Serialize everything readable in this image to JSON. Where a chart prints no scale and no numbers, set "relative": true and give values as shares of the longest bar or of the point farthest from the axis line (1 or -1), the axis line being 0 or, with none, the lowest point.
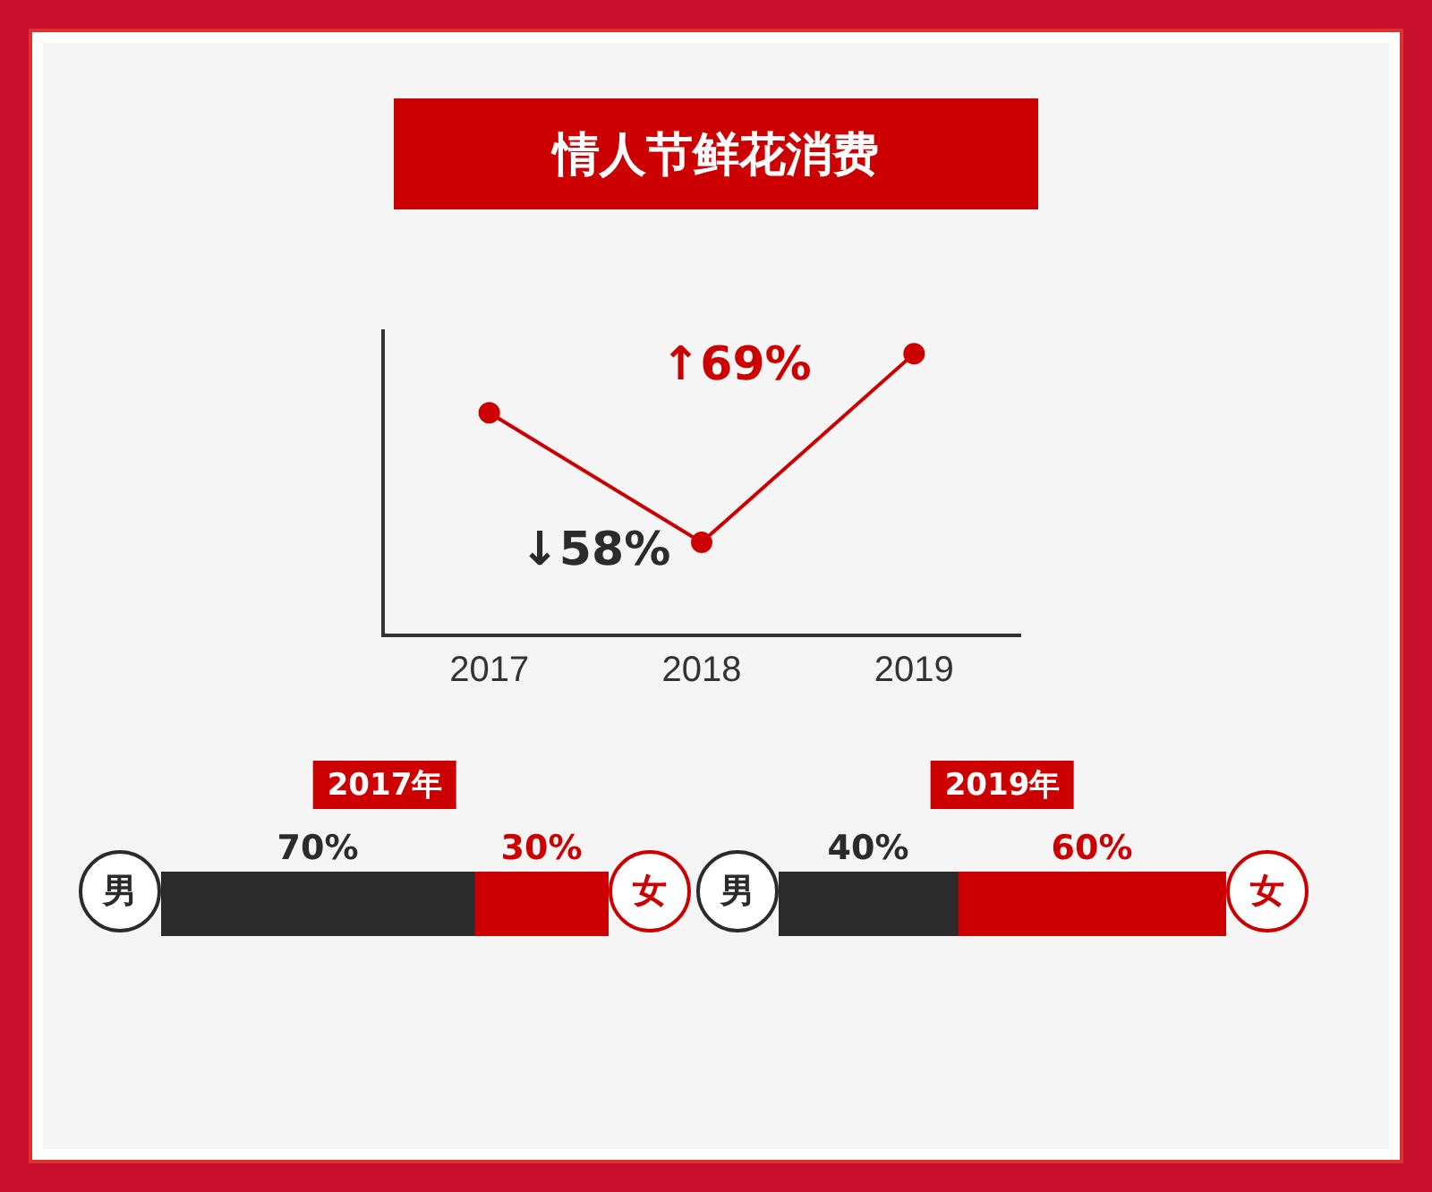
{
  "chart_data": [
    {
      "type": "line",
      "title": "情人节鲜花消费",
      "categories": [
        "2017",
        "2018",
        "2019"
      ],
      "relative": true,
      "series": [
        {
          "color": "#cc0000",
          "values": [
            0.79,
            0.33,
            1
          ]
        }
      ],
      "annotations": [
        "↓58%",
        "↑69%"
      ],
      "marker": "circle",
      "tick_labels": "x"
    },
    {
      "type": "bar",
      "title": "2017年",
      "orientation": "horizontal",
      "stacked": true,
      "categories": [
        null
      ],
      "tick_labels": false,
      "series": [
        {
          "name": "男",
          "color": "#2b2b2b",
          "values": [
            70
          ],
          "value_labels": [
            "70%"
          ]
        },
        {
          "name": "女",
          "color": "#cc0000",
          "values": [
            30
          ],
          "value_labels": [
            "30%"
          ]
        }
      ]
    },
    {
      "type": "bar",
      "title": "2019年",
      "orientation": "horizontal",
      "stacked": true,
      "categories": [
        null
      ],
      "tick_labels": false,
      "series": [
        {
          "name": "男",
          "color": "#2b2b2b",
          "values": [
            40
          ],
          "value_labels": [
            "40%"
          ]
        },
        {
          "name": "女",
          "color": "#cc0000",
          "values": [
            60
          ],
          "value_labels": [
            "60%"
          ]
        }
      ]
    }
  ]
}
